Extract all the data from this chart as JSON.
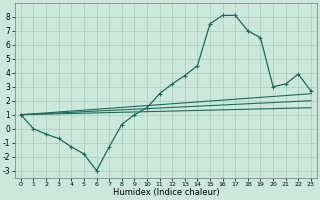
{
  "xlabel": "Humidex (Indice chaleur)",
  "ylabel": "",
  "xlim": [
    -0.5,
    23.5
  ],
  "ylim": [
    -3.5,
    9.0
  ],
  "xticks": [
    0,
    1,
    2,
    3,
    4,
    5,
    6,
    7,
    8,
    9,
    10,
    11,
    12,
    13,
    14,
    15,
    16,
    17,
    18,
    19,
    20,
    21,
    22,
    23
  ],
  "yticks": [
    -3,
    -2,
    -1,
    0,
    1,
    2,
    3,
    4,
    5,
    6,
    7,
    8
  ],
  "background_color": "#cce8dc",
  "grid_color": "#aaccbb",
  "line_color": "#1a6b5a",
  "line1_x": [
    0,
    1,
    2,
    3,
    4,
    5,
    6,
    7,
    8,
    9,
    10,
    11,
    12,
    13,
    14,
    15,
    16,
    17,
    18,
    19,
    20,
    21,
    22,
    23
  ],
  "line1_y": [
    1.0,
    0.0,
    -0.4,
    -0.7,
    -1.3,
    -1.8,
    -3.0,
    -1.3,
    0.3,
    1.0,
    1.5,
    2.5,
    3.2,
    3.8,
    4.5,
    7.5,
    8.1,
    8.1,
    7.0,
    6.5,
    3.0,
    3.2,
    3.9,
    2.7
  ],
  "line2_x": [
    0,
    23
  ],
  "line2_y": [
    1.0,
    2.5
  ],
  "line3_x": [
    0,
    23
  ],
  "line3_y": [
    1.0,
    2.0
  ],
  "line4_x": [
    0,
    23
  ],
  "line4_y": [
    1.0,
    1.5
  ],
  "marker": "+"
}
